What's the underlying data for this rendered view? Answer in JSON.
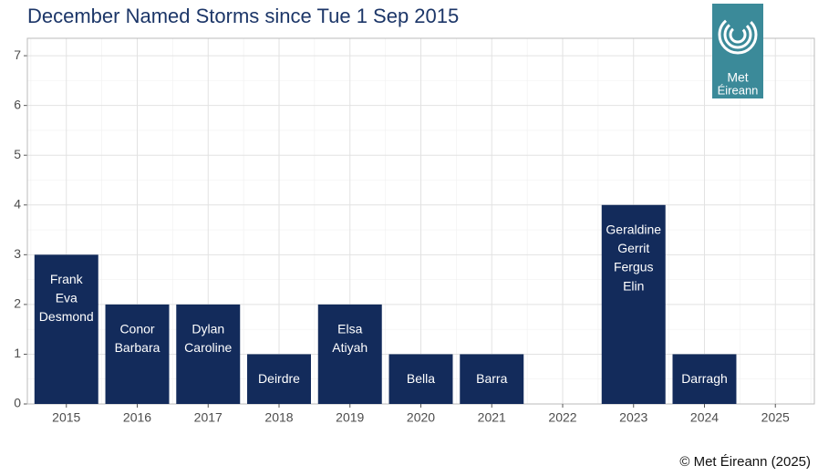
{
  "chart_data": {
    "type": "bar",
    "title": "December Named Storms since Tue 1 Sep 2015",
    "categories": [
      "2015",
      "2016",
      "2017",
      "2018",
      "2019",
      "2020",
      "2021",
      "2022",
      "2023",
      "2024",
      "2025"
    ],
    "values": [
      3,
      2,
      2,
      1,
      2,
      1,
      1,
      0,
      4,
      1,
      0
    ],
    "storm_names": [
      [
        "Frank",
        "Eva",
        "Desmond"
      ],
      [
        "Conor",
        "Barbara"
      ],
      [
        "Dylan",
        "Caroline"
      ],
      [
        "Deirdre"
      ],
      [
        "Elsa",
        "Atiyah"
      ],
      [
        "Bella"
      ],
      [
        "Barra"
      ],
      [],
      [
        "Geraldine",
        "Gerrit",
        "Fergus",
        "Elin"
      ],
      [
        "Darragh"
      ],
      []
    ],
    "color": "#132b5b",
    "ylim": [
      0,
      7.35
    ],
    "yticks": [
      0,
      1,
      2,
      3,
      4,
      5,
      6,
      7
    ],
    "grid": true,
    "caption": "© Met Éireann (2025)",
    "logo": [
      "Met",
      "Éireann"
    ]
  }
}
